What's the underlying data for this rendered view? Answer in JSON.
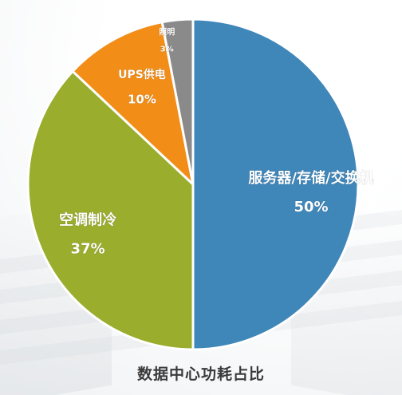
{
  "chart_data": {
    "type": "pie",
    "title": "数据中心功耗占比",
    "slices": [
      {
        "label": "服务器/存储/交换机",
        "value": 50,
        "display": "50%",
        "color": "#3f86b9"
      },
      {
        "label": "空调制冷",
        "value": 37,
        "display": "37%",
        "color": "#9aad2c"
      },
      {
        "label": "UPS供电",
        "value": 10,
        "display": "10%",
        "color": "#f28d17"
      },
      {
        "label": "照明",
        "value": 3,
        "display": "3%",
        "color": "#8a8a8a"
      }
    ]
  }
}
